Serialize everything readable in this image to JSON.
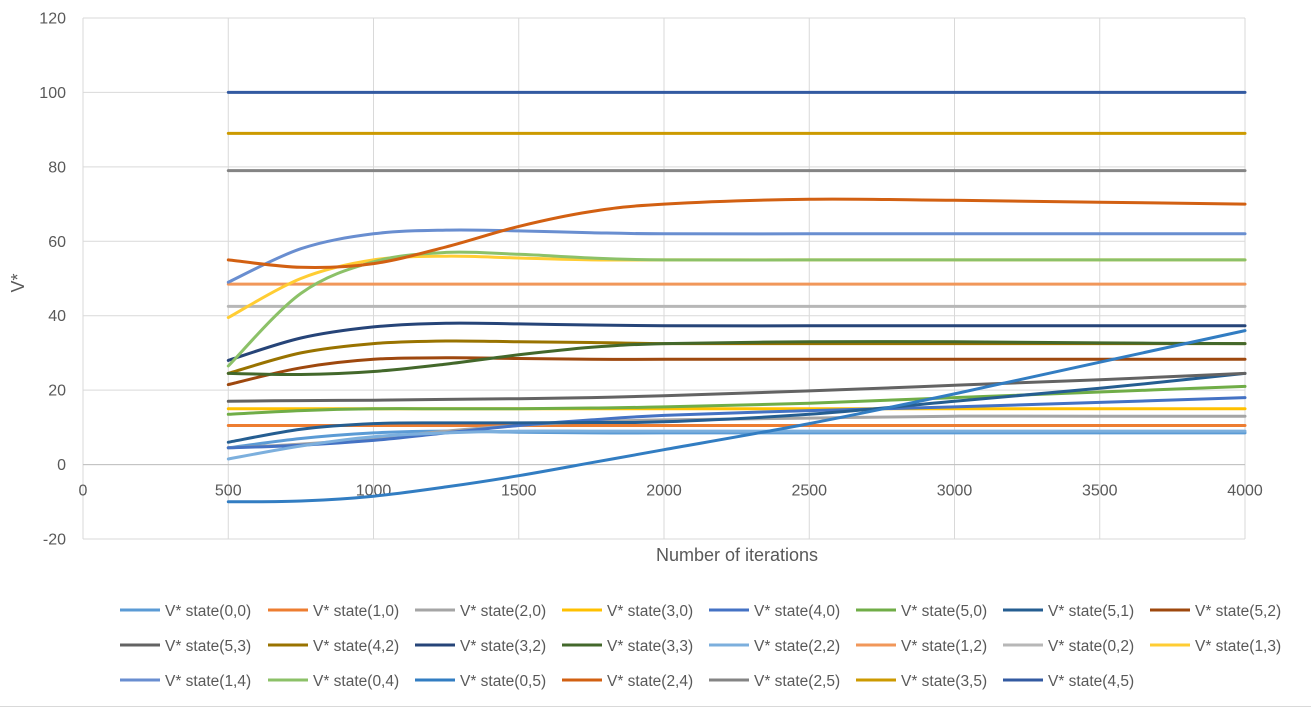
{
  "chart_data": {
    "type": "line",
    "title": "",
    "xlabel": "Number of iterations",
    "ylabel": "V*",
    "xlim": [
      0,
      4000
    ],
    "ylim": [
      -20,
      120
    ],
    "xticks": [
      0,
      500,
      1000,
      1500,
      2000,
      2500,
      3000,
      3500,
      4000
    ],
    "yticks": [
      -20,
      0,
      20,
      40,
      60,
      80,
      100,
      120
    ],
    "grid": true,
    "legend_position": "bottom",
    "x": [
      500,
      750,
      1000,
      1250,
      1500,
      1750,
      2000,
      2500,
      3000,
      3500,
      4000
    ],
    "series": [
      {
        "name": "V* state(0,0)",
        "color": "#5B9BD5",
        "values": [
          4.5,
          7,
          8.5,
          9,
          8.7,
          8.5,
          8.5,
          8.5,
          8.5,
          8.5,
          8.5
        ]
      },
      {
        "name": "V* state(1,0)",
        "color": "#ED7D31",
        "values": [
          10.5,
          10.5,
          10.5,
          10.5,
          10.5,
          10.5,
          10.5,
          10.5,
          10.5,
          10.5,
          10.5
        ]
      },
      {
        "name": "V* state(2,0)",
        "color": "#A5A5A5",
        "values": [
          4.5,
          5.5,
          7,
          9,
          10.5,
          11.5,
          12,
          12.5,
          13,
          13,
          13
        ]
      },
      {
        "name": "V* state(3,0)",
        "color": "#FFC000",
        "values": [
          15,
          15,
          15,
          15,
          15,
          15,
          15,
          15,
          15,
          15,
          15
        ]
      },
      {
        "name": "V* state(4,0)",
        "color": "#4472C4",
        "values": [
          4.5,
          5.2,
          6.5,
          8.5,
          10.5,
          12,
          13.2,
          14.5,
          15.5,
          16.7,
          18
        ]
      },
      {
        "name": "V* state(5,0)",
        "color": "#70AD47",
        "values": [
          13.5,
          14.5,
          15,
          15,
          15,
          15.2,
          15.5,
          16.5,
          18,
          19.5,
          21
        ]
      },
      {
        "name": "V* state(5,1)",
        "color": "#255E91",
        "values": [
          6,
          9.5,
          11,
          11.2,
          11.2,
          11.3,
          11.5,
          13.5,
          17,
          20.5,
          24.5
        ]
      },
      {
        "name": "V* state(5,2)",
        "color": "#9E480E",
        "values": [
          21.5,
          26,
          28.3,
          28.7,
          28.5,
          28.3,
          28.3,
          28.3,
          28.3,
          28.3,
          28.3
        ]
      },
      {
        "name": "V* state(5,3)",
        "color": "#636363",
        "values": [
          17,
          17.2,
          17.3,
          17.5,
          17.7,
          18,
          18.5,
          19.8,
          21.3,
          22.8,
          24.5
        ]
      },
      {
        "name": "V* state(4,2)",
        "color": "#997300",
        "values": [
          24.5,
          30,
          32.5,
          33.2,
          33,
          32.8,
          32.5,
          32.5,
          32.5,
          32.5,
          32.5
        ]
      },
      {
        "name": "V* state(3,2)",
        "color": "#264478",
        "values": [
          28,
          34,
          37,
          38,
          37.8,
          37.5,
          37.3,
          37.3,
          37.3,
          37.3,
          37.3
        ]
      },
      {
        "name": "V* state(3,3)",
        "color": "#43682B",
        "values": [
          24.5,
          24.2,
          25,
          27,
          29.5,
          31.5,
          32.5,
          33,
          33,
          32.7,
          32.5
        ]
      },
      {
        "name": "V* state(2,2)",
        "color": "#7CAFDD",
        "values": [
          1.5,
          5,
          7.5,
          8.5,
          9,
          9,
          9,
          9,
          9,
          9,
          9
        ]
      },
      {
        "name": "V* state(1,2)",
        "color": "#F1975A",
        "values": [
          48.5,
          48.5,
          48.5,
          48.5,
          48.5,
          48.5,
          48.5,
          48.5,
          48.5,
          48.5,
          48.5
        ]
      },
      {
        "name": "V* state(0,2)",
        "color": "#B7B7B7",
        "values": [
          42.5,
          42.5,
          42.5,
          42.5,
          42.5,
          42.5,
          42.5,
          42.5,
          42.5,
          42.5,
          42.5
        ]
      },
      {
        "name": "V* state(1,3)",
        "color": "#FFCD33",
        "values": [
          39.5,
          50,
          55,
          56,
          55.5,
          55,
          55,
          55,
          55,
          55,
          55
        ]
      },
      {
        "name": "V* state(1,4)",
        "color": "#698ED0",
        "values": [
          49,
          58,
          62,
          63,
          62.8,
          62.3,
          62,
          62,
          62,
          62,
          62
        ]
      },
      {
        "name": "V* state(0,4)",
        "color": "#8CC168",
        "values": [
          26.5,
          46,
          54.5,
          57,
          56.5,
          55.5,
          55,
          55,
          55,
          55,
          55
        ]
      },
      {
        "name": "V* state(0,5)",
        "color": "#327DC2",
        "values": [
          -10,
          -9.8,
          -8.5,
          -6,
          -3,
          0.5,
          4,
          11,
          19,
          27.5,
          36
        ]
      },
      {
        "name": "V* state(2,4)",
        "color": "#D26012",
        "values": [
          55,
          53,
          54,
          58.5,
          64,
          68,
          70,
          71.3,
          71,
          70.5,
          70
        ]
      },
      {
        "name": "V* state(2,5)",
        "color": "#848484",
        "values": [
          79,
          79,
          79,
          79,
          79,
          79,
          79,
          79,
          79,
          79,
          79
        ]
      },
      {
        "name": "V* state(3,5)",
        "color": "#CC9A00",
        "values": [
          89,
          89,
          89,
          89,
          89,
          89,
          89,
          89,
          89,
          89,
          89
        ]
      },
      {
        "name": "V* state(4,5)",
        "color": "#335AA1",
        "values": [
          100,
          100,
          100,
          100,
          100,
          100,
          100,
          100,
          100,
          100,
          100
        ]
      }
    ]
  }
}
